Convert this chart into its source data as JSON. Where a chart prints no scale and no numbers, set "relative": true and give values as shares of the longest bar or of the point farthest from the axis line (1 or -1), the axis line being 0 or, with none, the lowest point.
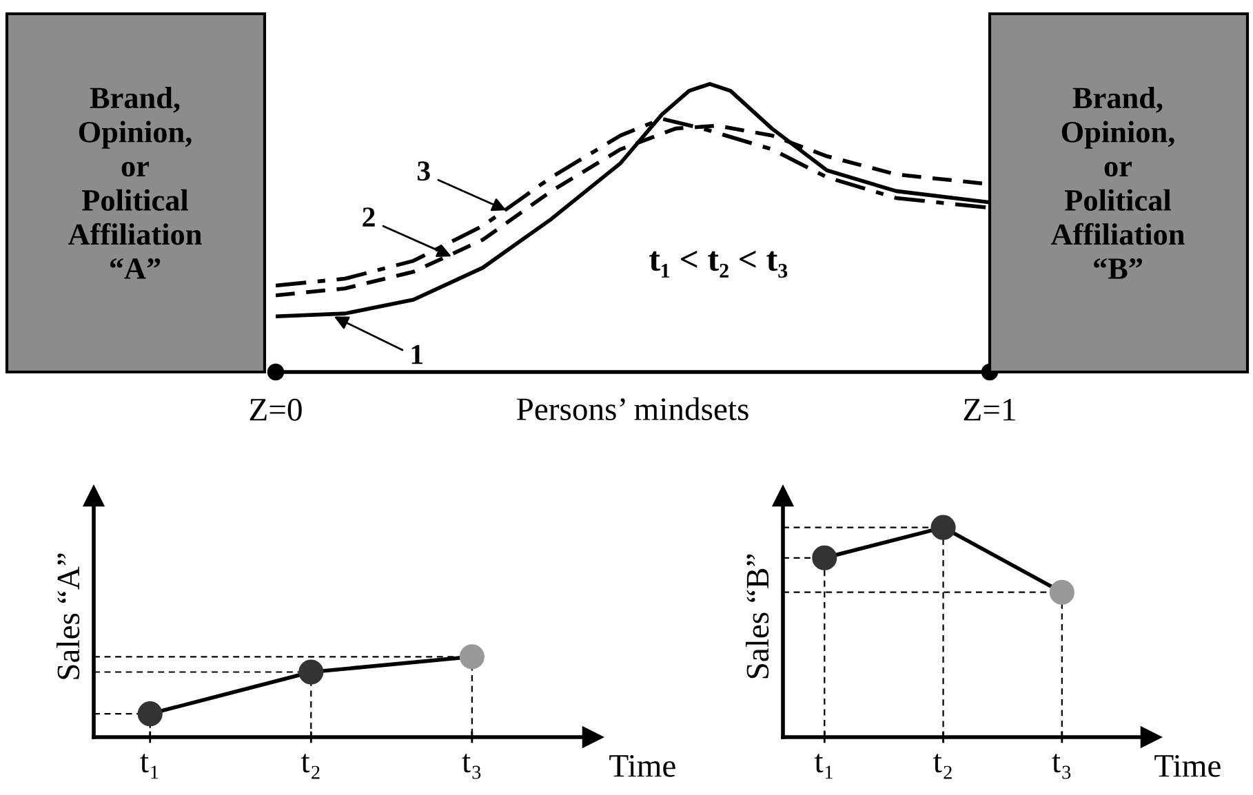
{
  "chart_data": [
    {
      "type": "line",
      "relative": true,
      "xlabel": "Persons’ mindsets",
      "xlim": [
        0,
        1
      ],
      "xticks": [
        {
          "value": 0,
          "label": "Z=0"
        },
        {
          "value": 1,
          "label": "Z=1"
        }
      ],
      "tick_labels": "x",
      "legend": false,
      "grid": false,
      "marker": "none",
      "annotations": [
        "Brand,\nOpinion,\nor\nPolitical\nAffiliation\n“A”",
        "Brand,\nOpinion,\nor\nPolitical\nAffiliation\n“B”",
        "t₁ < t₂ < t₃",
        {
          "text": "1",
          "x": 0.077,
          "y": 0.198
        },
        {
          "text": "2",
          "x": 0.251,
          "y": 0.396
        },
        {
          "text": "3",
          "x": 0.328,
          "y": 0.556
        }
      ],
      "series": [
        {
          "color": "#000000",
          "line_style": "solid",
          "x": [
            0,
            0.097,
            0.193,
            0.29,
            0.386,
            0.483,
            0.541,
            0.579,
            0.608,
            0.637,
            0.695,
            0.772,
            0.869,
            1
          ],
          "values": [
            0.193,
            0.203,
            0.251,
            0.362,
            0.531,
            0.725,
            0.894,
            0.976,
            1.0,
            0.976,
            0.845,
            0.7,
            0.628,
            0.589
          ]
        },
        {
          "color": "#000000",
          "line_style": "dashed",
          "x": [
            0,
            0.097,
            0.193,
            0.29,
            0.386,
            0.483,
            0.56,
            0.618,
            0.695,
            0.772,
            0.869,
            1
          ],
          "values": [
            0.266,
            0.29,
            0.348,
            0.459,
            0.628,
            0.773,
            0.845,
            0.855,
            0.821,
            0.749,
            0.686,
            0.652
          ]
        },
        {
          "color": "#000000",
          "line_style": "dashdot",
          "x": [
            0,
            0.097,
            0.193,
            0.29,
            0.386,
            0.483,
            0.541,
            0.598,
            0.695,
            0.772,
            0.869,
            1
          ],
          "values": [
            0.3,
            0.324,
            0.386,
            0.507,
            0.676,
            0.821,
            0.879,
            0.845,
            0.773,
            0.676,
            0.604,
            0.57
          ]
        }
      ]
    },
    {
      "type": "line",
      "relative": true,
      "categories": [
        "t₁",
        "t₂",
        "t₃"
      ],
      "xlabel": "Time",
      "ylabel": "Sales “A”",
      "legend": false,
      "grid": false,
      "marker": "circle",
      "series": [
        {
          "color": "#000000",
          "colors": [
            "#333333",
            "#333333",
            "#999999"
          ],
          "values": [
            0.29,
            0.81,
            1.0
          ]
        }
      ]
    },
    {
      "type": "line",
      "relative": true,
      "categories": [
        "t₁",
        "t₂",
        "t₃"
      ],
      "xlabel": "Time",
      "ylabel": "Sales “B”",
      "legend": false,
      "grid": false,
      "marker": "circle",
      "series": [
        {
          "color": "#000000",
          "colors": [
            "#333333",
            "#333333",
            "#999999"
          ],
          "values": [
            0.855,
            1.0,
            0.691
          ]
        }
      ]
    }
  ]
}
